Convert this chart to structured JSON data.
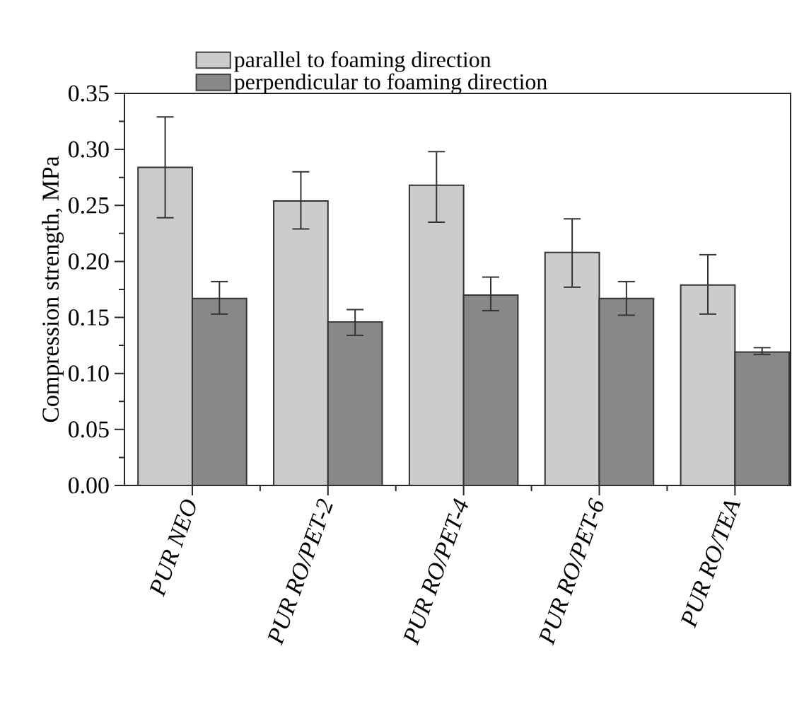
{
  "chart_data": {
    "type": "bar",
    "ylabel": "Compression strength, MPa",
    "categories": [
      "PUR NEO",
      "PUR RO/PET-2",
      "PUR RO/PET-4",
      "PUR RO/PET-6",
      "PUR RO/TEA"
    ],
    "series": [
      {
        "name": "parallel to foaming direction",
        "color": "#cccccc",
        "values": [
          0.284,
          0.254,
          0.268,
          0.208,
          0.179
        ],
        "errors": [
          [
            0.239,
            0.329
          ],
          [
            0.229,
            0.28
          ],
          [
            0.235,
            0.298
          ],
          [
            0.177,
            0.238
          ],
          [
            0.153,
            0.206
          ]
        ]
      },
      {
        "name": "perpendicular to foaming direction",
        "color": "#888888",
        "values": [
          0.167,
          0.146,
          0.17,
          0.167,
          0.119
        ],
        "errors": [
          [
            0.153,
            0.182
          ],
          [
            0.134,
            0.157
          ],
          [
            0.156,
            0.186
          ],
          [
            0.152,
            0.182
          ],
          [
            0.117,
            0.123
          ]
        ]
      }
    ],
    "ylim": [
      0,
      0.35
    ],
    "yticks": [
      {
        "value": 0,
        "label": "0.00"
      },
      {
        "value": 0.05,
        "label": "0.05"
      },
      {
        "value": 0.1,
        "label": "0.10"
      },
      {
        "value": 0.15,
        "label": "0.15"
      },
      {
        "value": 0.2,
        "label": "0.20"
      },
      {
        "value": 0.25,
        "label": "0.25"
      },
      {
        "value": 0.3,
        "label": "0.30"
      },
      {
        "value": 0.35,
        "label": "0.35"
      }
    ],
    "legend": "top",
    "grid": false
  }
}
